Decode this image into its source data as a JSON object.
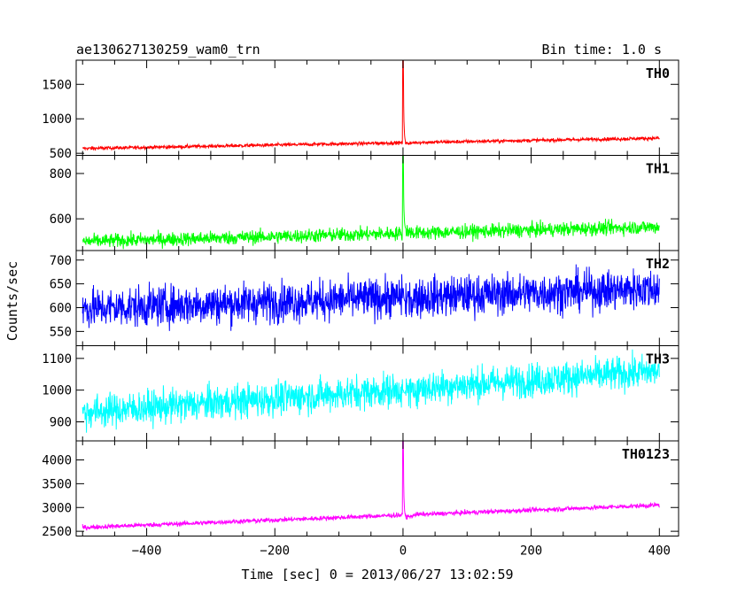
{
  "header": {
    "title": "ae130627130259_wam0_trn",
    "bin_time": "Bin time: 1.0 s"
  },
  "chart_data": {
    "type": "line",
    "xlabel": "Time [sec] 0 = 2013/06/27 13:02:59",
    "ylabel": "Counts/sec",
    "xlim": [
      -510,
      430
    ],
    "xticks": [
      -400,
      -200,
      0,
      200,
      400
    ],
    "xtick_labels": [
      "−400",
      "−200",
      "0",
      "200",
      "400"
    ],
    "panels": [
      {
        "name": "TH0",
        "color": "#ff0000",
        "ylim": [
          470,
          1850
        ],
        "yticks": [
          500,
          1000,
          1500
        ],
        "ytick_labels": [
          "500",
          "1000",
          "1500"
        ],
        "baseline_start": 570,
        "baseline_end": 720,
        "noise": 18,
        "peak": 1850,
        "post": 640
      },
      {
        "name": "TH1",
        "color": "#00ff00",
        "ylim": [
          460,
          880
        ],
        "yticks": [
          600,
          800
        ],
        "ytick_labels": [
          "600",
          "800"
        ],
        "baseline_start": 500,
        "baseline_end": 565,
        "noise": 22,
        "peak": 880,
        "post": 550
      },
      {
        "name": "TH2",
        "color": "#0000ff",
        "ylim": [
          520,
          720
        ],
        "yticks": [
          550,
          600,
          650,
          700
        ],
        "ytick_labels": [
          "550",
          "600",
          "650",
          "700"
        ],
        "baseline_start": 598,
        "baseline_end": 640,
        "noise": 30,
        "peak": 640,
        "post": 612
      },
      {
        "name": "TH3",
        "color": "#00ffff",
        "ylim": [
          840,
          1140
        ],
        "yticks": [
          900,
          1000,
          1100
        ],
        "ytick_labels": [
          "900",
          "1000",
          "1100"
        ],
        "baseline_start": 930,
        "baseline_end": 1060,
        "noise": 38,
        "peak": 1000,
        "post": 990
      },
      {
        "name": "TH0123",
        "color": "#ff00ff",
        "ylim": [
          2400,
          4400
        ],
        "yticks": [
          2500,
          3000,
          3500,
          4000
        ],
        "ytick_labels": [
          "2500",
          "3000",
          "3500",
          "4000"
        ],
        "baseline_start": 2580,
        "baseline_end": 3050,
        "noise": 35,
        "peak": 4400,
        "post": 2780
      }
    ]
  }
}
